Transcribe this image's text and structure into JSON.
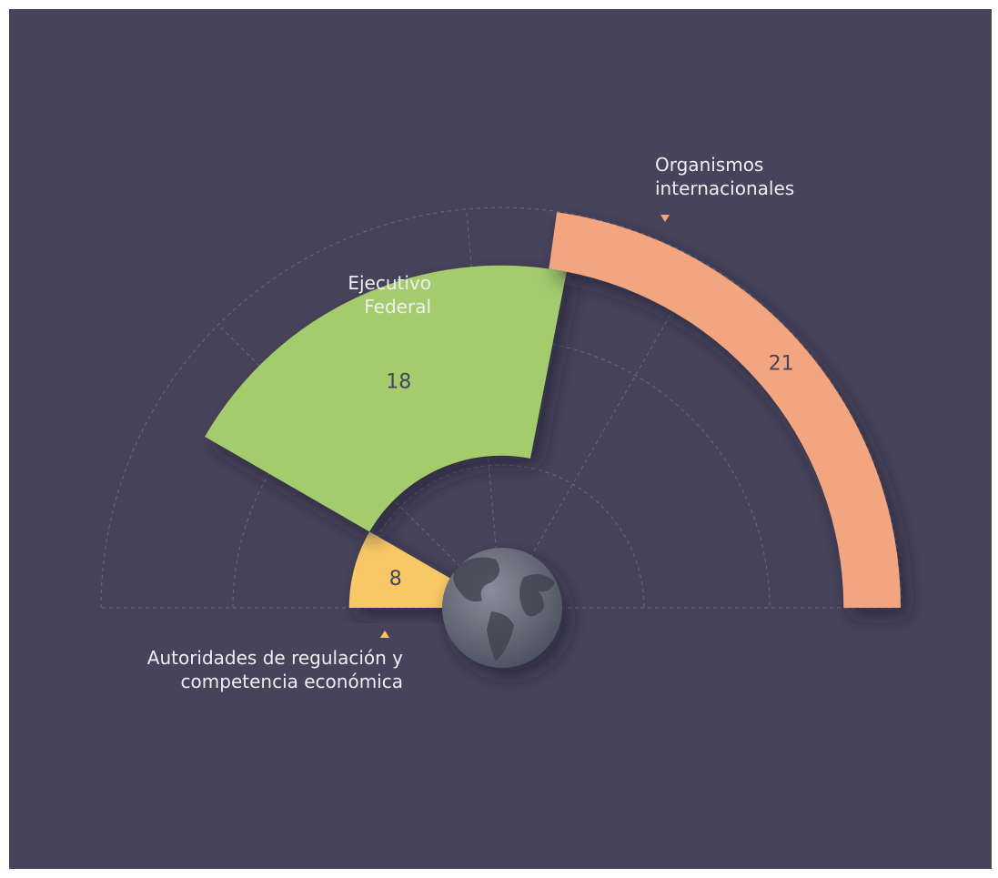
{
  "chart_data": {
    "type": "polar-bar",
    "categories": [
      "Autoridades de regulación y competencia económica",
      "Ejecutivo Federal",
      "Organismos internacionales"
    ],
    "values": [
      8,
      18,
      21
    ],
    "colors": [
      "#f7c865",
      "#a4cc6d",
      "#f2a57f"
    ]
  }
}
